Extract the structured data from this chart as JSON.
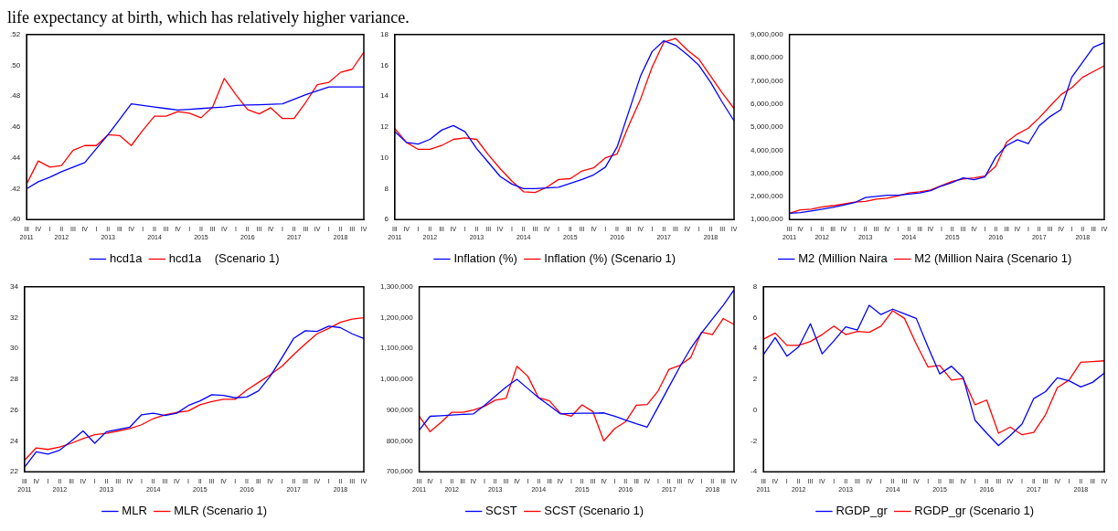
{
  "chart_data": [
    {
      "type": "line",
      "annotations": [
        "life expectancy at birth, which has relatively higher variance."
      ],
      "categories": [
        "III\n2011",
        "IV",
        "I",
        "II\n2012",
        "III",
        "IV",
        "I",
        "II\n2013",
        "III",
        "IV",
        "I",
        "II\n2014",
        "III",
        "IV",
        "I",
        "II\n2015",
        "III",
        "IV",
        "I",
        "II\n2016",
        "III",
        "IV",
        "I",
        "II\n2017",
        "III",
        "IV",
        "I",
        "II\n2018",
        "III",
        "IV"
      ],
      "series": [
        {
          "name": "hcd1a",
          "color": "#0000ff",
          "values": [
            0.42,
            0.4245,
            0.4275,
            0.431,
            0.434,
            0.437,
            0.446,
            0.455,
            0.465,
            0.475,
            0.474,
            0.473,
            0.472,
            0.471,
            0.4715,
            0.472,
            0.4725,
            0.473,
            0.474,
            0.4743,
            0.4745,
            0.4748,
            0.475,
            0.478,
            0.481,
            0.4835,
            0.486,
            0.486,
            0.486,
            0.486
          ]
        },
        {
          "name": "hcd1a    (Scenario 1)",
          "color": "#ff0000",
          "values": [
            0.423,
            0.438,
            0.434,
            0.435,
            0.445,
            0.448,
            0.448,
            0.455,
            0.4545,
            0.448,
            0.458,
            0.467,
            0.467,
            0.47,
            0.469,
            0.466,
            0.473,
            0.4915,
            0.481,
            0.4713,
            0.4685,
            0.4725,
            0.4655,
            0.4655,
            0.476,
            0.4875,
            0.489,
            0.4955,
            0.4975,
            0.5085
          ]
        }
      ],
      "ylim": [
        0.4,
        0.52
      ],
      "yticks": [
        {
          "value": 0.4,
          "label": ".40"
        },
        {
          "value": 0.42,
          "label": ".42"
        },
        {
          "value": 0.44,
          "label": ".44"
        },
        {
          "value": 0.46,
          "label": ".46"
        },
        {
          "value": 0.48,
          "label": ".48"
        },
        {
          "value": 0.5,
          "label": ".50"
        },
        {
          "value": 0.52,
          "label": ".52"
        }
      ],
      "legend": "bottom",
      "grid": false
    },
    {
      "type": "line",
      "categories": [
        "III\n2011",
        "IV",
        "I",
        "II\n2012",
        "III",
        "IV",
        "I",
        "II\n2013",
        "III",
        "IV",
        "I",
        "II\n2014",
        "III",
        "IV",
        "I",
        "II\n2015",
        "III",
        "IV",
        "I",
        "II\n2016",
        "III",
        "IV",
        "I",
        "II\n2017",
        "III",
        "IV",
        "I",
        "II\n2018",
        "III",
        "IV"
      ],
      "series": [
        {
          "name": "Inflation (%)",
          "color": "#0000ff",
          "values": [
            11.7,
            11.0,
            10.9,
            11.2,
            11.8,
            12.1,
            11.7,
            10.6,
            9.7,
            8.8,
            8.3,
            8.0,
            8.0,
            8.05,
            8.1,
            8.35,
            8.6,
            8.9,
            9.4,
            10.7,
            13.0,
            15.3,
            16.9,
            17.6,
            17.3,
            16.7,
            16.0,
            14.9,
            13.6,
            12.4
          ]
        },
        {
          "name": "Inflation (%) (Scenario 1)",
          "color": "#ff0000",
          "values": [
            11.9,
            11.0,
            10.55,
            10.55,
            10.8,
            11.2,
            11.3,
            11.2,
            10.2,
            9.3,
            8.5,
            7.8,
            7.75,
            8.1,
            8.6,
            8.65,
            9.15,
            9.35,
            10.0,
            10.25,
            12.1,
            13.8,
            15.9,
            17.5,
            17.75,
            17.0,
            16.4,
            15.3,
            14.2,
            13.2
          ]
        }
      ],
      "ylim": [
        6,
        18
      ],
      "yticks": [
        6,
        8,
        10,
        12,
        14,
        16,
        18
      ],
      "legend": "bottom",
      "grid": false
    },
    {
      "type": "line",
      "categories": [
        "III\n2011",
        "IV",
        "I",
        "II\n2012",
        "III",
        "IV",
        "I",
        "II\n2013",
        "III",
        "IV",
        "I",
        "II\n2014",
        "III",
        "IV",
        "I",
        "II\n2015",
        "III",
        "IV",
        "I",
        "II\n2016",
        "III",
        "IV",
        "I",
        "II\n2017",
        "III",
        "IV",
        "I",
        "II\n2018",
        "III",
        "IV"
      ],
      "series": [
        {
          "name": "M2 (Million Naira",
          "color": "#0000ff",
          "values": [
            1270000,
            1300000,
            1370000,
            1450000,
            1530000,
            1630000,
            1730000,
            1950000,
            2000000,
            2050000,
            2050000,
            2100000,
            2150000,
            2250000,
            2450000,
            2600000,
            2800000,
            2720000,
            2840000,
            3700000,
            4200000,
            4450000,
            4280000,
            5050000,
            5450000,
            5750000,
            7150000,
            7800000,
            8450000,
            8650000
          ]
        },
        {
          "name": "M2 (Million Naira (Scenario 1)",
          "color": "#ff0000",
          "values": [
            1270000,
            1420000,
            1450000,
            1550000,
            1600000,
            1670000,
            1750000,
            1780000,
            1880000,
            1920000,
            2020000,
            2150000,
            2200000,
            2280000,
            2470000,
            2650000,
            2750000,
            2800000,
            2880000,
            3300000,
            4350000,
            4700000,
            4950000,
            5400000,
            5900000,
            6400000,
            6700000,
            7150000,
            7400000,
            7650000
          ]
        }
      ],
      "ylim": [
        1000000,
        9000000
      ],
      "yticks": [
        {
          "value": 1000000,
          "label": "1,000,000"
        },
        {
          "value": 2000000,
          "label": "2,000,000"
        },
        {
          "value": 3000000,
          "label": "3,000,000"
        },
        {
          "value": 4000000,
          "label": "4,000,000"
        },
        {
          "value": 5000000,
          "label": "5,000,000"
        },
        {
          "value": 6000000,
          "label": "6,000,000"
        },
        {
          "value": 7000000,
          "label": "7,000,000"
        },
        {
          "value": 8000000,
          "label": "8,000,000"
        },
        {
          "value": 9000000,
          "label": "9,000,000"
        }
      ],
      "legend": "bottom",
      "grid": false
    },
    {
      "type": "line",
      "categories": [
        "III\n2011",
        "IV",
        "I",
        "II\n2012",
        "III",
        "IV",
        "I",
        "II\n2013",
        "III",
        "IV",
        "I",
        "II\n2014",
        "III",
        "IV",
        "I",
        "II\n2015",
        "III",
        "IV",
        "I",
        "II\n2016",
        "III",
        "IV",
        "I",
        "II\n2017",
        "III",
        "IV",
        "I",
        "II\n2018",
        "III",
        "IV"
      ],
      "series": [
        {
          "name": "MLR",
          "color": "#0000ff",
          "values": [
            22.3,
            23.3,
            23.15,
            23.4,
            24.0,
            24.65,
            23.85,
            24.6,
            24.75,
            24.9,
            25.7,
            25.8,
            25.65,
            25.8,
            26.3,
            26.6,
            27.0,
            26.95,
            26.8,
            26.85,
            27.25,
            28.2,
            29.4,
            30.65,
            31.15,
            31.1,
            31.45,
            31.35,
            30.95,
            30.65
          ]
        },
        {
          "name": "MLR (Scenario 1)",
          "color": "#ff0000",
          "values": [
            22.75,
            23.55,
            23.45,
            23.6,
            23.85,
            24.15,
            24.4,
            24.5,
            24.65,
            24.8,
            25.05,
            25.45,
            25.7,
            25.85,
            25.95,
            26.35,
            26.55,
            26.7,
            26.7,
            27.3,
            27.8,
            28.3,
            28.85,
            29.6,
            30.3,
            30.95,
            31.3,
            31.7,
            31.9,
            32.0
          ]
        }
      ],
      "ylim": [
        22,
        34
      ],
      "yticks": [
        22,
        24,
        26,
        28,
        30,
        32,
        34
      ],
      "legend": "bottom",
      "grid": false
    },
    {
      "type": "line",
      "categories": [
        "III\n2011",
        "IV",
        "I",
        "II\n2012",
        "III",
        "IV",
        "I",
        "II\n2013",
        "III",
        "IV",
        "I",
        "II\n2014",
        "III",
        "IV",
        "I",
        "II\n2015",
        "III",
        "IV",
        "I",
        "II\n2016",
        "III",
        "IV",
        "I",
        "II\n2017",
        "III",
        "IV",
        "I",
        "II\n2018",
        "III",
        "IV"
      ],
      "series": [
        {
          "name": "SCST",
          "color": "#0000ff",
          "values": [
            835000,
            880000,
            882000,
            884000,
            886000,
            888000,
            915000,
            945000,
            975000,
            1000000,
            970000,
            940000,
            915000,
            888000,
            889000,
            890000,
            890000,
            891000,
            880000,
            868000,
            856000,
            845000,
            910000,
            975000,
            1040000,
            1100000,
            1150000,
            1195000,
            1240000,
            1290000
          ]
        },
        {
          "name": "SCST (Scenario 1)",
          "color": "#ff0000",
          "values": [
            880000,
            830000,
            860000,
            893000,
            893000,
            900000,
            912000,
            932000,
            938000,
            1042000,
            1010000,
            940000,
            930000,
            890000,
            880000,
            917000,
            895000,
            800000,
            840000,
            862000,
            916000,
            918000,
            962000,
            1032000,
            1045000,
            1070000,
            1153000,
            1145000,
            1197000,
            1178000
          ]
        }
      ],
      "ylim": [
        700000,
        1300000
      ],
      "yticks": [
        {
          "value": 700000,
          "label": "700,000"
        },
        {
          "value": 800000,
          "label": "800,000"
        },
        {
          "value": 900000,
          "label": "900,000"
        },
        {
          "value": 1000000,
          "label": "1,000,000"
        },
        {
          "value": 1100000,
          "label": "1,100,000"
        },
        {
          "value": 1200000,
          "label": "1,200,000"
        },
        {
          "value": 1300000,
          "label": "1,300,000"
        }
      ],
      "legend": "bottom",
      "grid": false
    },
    {
      "type": "line",
      "categories": [
        "III\n2011",
        "IV",
        "I",
        "II\n2012",
        "III",
        "IV",
        "I",
        "II\n2013",
        "III",
        "IV",
        "I",
        "II\n2014",
        "III",
        "IV",
        "I",
        "II\n2015",
        "III",
        "IV",
        "I",
        "II\n2016",
        "III",
        "IV",
        "I",
        "II\n2017",
        "III",
        "IV",
        "I",
        "II\n2018",
        "III",
        "IV"
      ],
      "series": [
        {
          "name": "RGDP_gr",
          "color": "#0000ff",
          "values": [
            3.6,
            4.7,
            3.5,
            4.1,
            5.6,
            3.65,
            4.5,
            5.4,
            5.2,
            6.8,
            6.2,
            6.55,
            6.25,
            5.95,
            4.1,
            2.35,
            2.85,
            2.1,
            -0.65,
            -1.5,
            -2.3,
            -1.65,
            -0.9,
            0.75,
            1.2,
            2.1,
            1.9,
            1.5,
            1.8,
            2.4
          ]
        },
        {
          "name": "RGDP_gr (Scenario 1)",
          "color": "#ff0000",
          "values": [
            4.6,
            5.0,
            4.2,
            4.2,
            4.45,
            4.9,
            5.45,
            4.9,
            5.1,
            5.05,
            5.45,
            6.45,
            5.95,
            4.3,
            2.8,
            2.9,
            1.95,
            2.05,
            0.35,
            0.65,
            -1.5,
            -1.1,
            -1.6,
            -1.45,
            -0.3,
            1.45,
            1.95,
            3.1,
            3.15,
            3.2
          ]
        }
      ],
      "ylim": [
        -4,
        8
      ],
      "yticks": [
        -4,
        -2,
        0,
        2,
        4,
        6,
        8
      ],
      "legend": "bottom",
      "grid": false
    }
  ]
}
